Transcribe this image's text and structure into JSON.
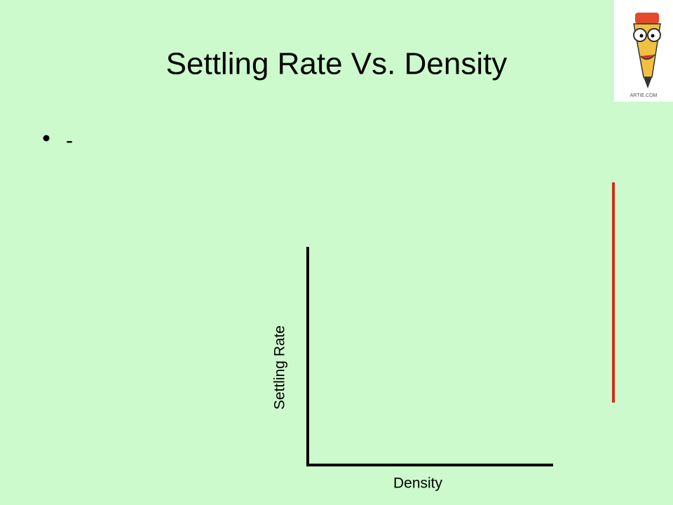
{
  "slide": {
    "title": "Settling Rate Vs. Density",
    "bullets": [
      "-"
    ],
    "graph": {
      "x_label": "Density",
      "y_label": "Settling Rate"
    },
    "logo": {
      "caption": "ARTIE.COM"
    }
  }
}
